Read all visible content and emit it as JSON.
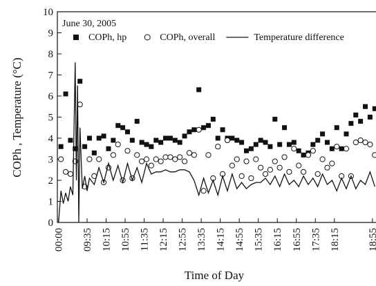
{
  "chart_data": {
    "type": "scatter",
    "annotation": "June 30, 2005",
    "xlabel": "Time of Day",
    "ylabel": "COPh , Temperature (°C)",
    "xlim": [
      -0.5,
      133.5
    ],
    "xticks": [
      {
        "value": 0,
        "label": "00:00"
      },
      {
        "value": 12,
        "label": "09:35"
      },
      {
        "value": 20,
        "label": "10:15"
      },
      {
        "value": 28,
        "label": "10:55"
      },
      {
        "value": 36,
        "label": "11:35"
      },
      {
        "value": 44,
        "label": "12:15"
      },
      {
        "value": 52,
        "label": "12:55"
      },
      {
        "value": 60,
        "label": "13:35"
      },
      {
        "value": 68,
        "label": "14:15"
      },
      {
        "value": 76,
        "label": "14:55"
      },
      {
        "value": 84,
        "label": "15:35"
      },
      {
        "value": 92,
        "label": "16:15"
      },
      {
        "value": 100,
        "label": "16:55"
      },
      {
        "value": 108,
        "label": "17:35"
      },
      {
        "value": 116,
        "label": "18:15"
      },
      {
        "value": 132,
        "label": "18:55"
      }
    ],
    "ylim": [
      0,
      10
    ],
    "yticks": [
      0,
      1,
      2,
      3,
      4,
      5,
      6,
      7,
      8,
      9,
      10
    ],
    "grid": false,
    "series": [
      {
        "name": "COPh, hp",
        "type": "scatter",
        "marker": "square",
        "color": "#111111",
        "x": [
          1,
          3,
          5,
          7,
          9,
          11,
          13,
          15,
          17,
          19,
          21,
          23,
          25,
          27,
          29,
          31,
          33,
          35,
          37,
          39,
          41,
          43,
          45,
          47,
          49,
          51,
          53,
          55,
          57,
          59,
          61,
          63,
          65,
          67,
          69,
          71,
          73,
          75,
          77,
          79,
          81,
          83,
          85,
          87,
          89,
          91,
          93,
          95,
          97,
          99,
          101,
          103,
          105,
          107,
          109,
          111,
          113,
          115,
          117,
          119,
          121,
          123,
          125,
          127,
          129,
          131,
          133
        ],
        "values": [
          3.6,
          6.1,
          3.9,
          3.5,
          6.7,
          3.6,
          4.0,
          3.3,
          4.0,
          4.1,
          3.5,
          3.9,
          4.6,
          4.5,
          4.3,
          3.9,
          4.8,
          3.8,
          3.7,
          3.6,
          3.9,
          3.8,
          4.0,
          4.0,
          3.9,
          3.8,
          4.1,
          4.3,
          4.4,
          6.3,
          4.5,
          4.6,
          4.9,
          4.0,
          4.4,
          4.0,
          4.0,
          3.9,
          3.8,
          3.4,
          3.5,
          3.7,
          3.9,
          3.8,
          3.6,
          4.9,
          3.7,
          4.5,
          3.7,
          3.8,
          3.4,
          3.2,
          3.3,
          3.7,
          3.9,
          4.2,
          3.8,
          3.5,
          4.5,
          3.5,
          4.2,
          4.7,
          5.1,
          4.8,
          5.5,
          5.0,
          5.4
        ]
      },
      {
        "name": "COPh, overall",
        "type": "scatter",
        "marker": "circle",
        "color": "#111111",
        "x": [
          1,
          3,
          5,
          7,
          9,
          11,
          13,
          15,
          17,
          19,
          21,
          23,
          25,
          27,
          29,
          31,
          33,
          35,
          37,
          39,
          41,
          43,
          45,
          47,
          49,
          51,
          53,
          55,
          57,
          59,
          61,
          63,
          65,
          67,
          69,
          71,
          73,
          75,
          77,
          79,
          81,
          83,
          85,
          87,
          89,
          91,
          93,
          95,
          97,
          99,
          101,
          103,
          105,
          107,
          109,
          111,
          113,
          115,
          117,
          119,
          121,
          123,
          125,
          127,
          129,
          131,
          133
        ],
        "values": [
          3.0,
          2.4,
          2.3,
          2.9,
          5.6,
          1.7,
          3.0,
          2.2,
          3.0,
          1.9,
          2.6,
          3.2,
          3.7,
          2.0,
          3.4,
          2.1,
          3.2,
          2.9,
          3.0,
          2.7,
          3.0,
          2.9,
          3.1,
          3.1,
          3.0,
          3.1,
          2.9,
          3.3,
          3.2,
          4.4,
          1.5,
          3.2,
          2.1,
          3.6,
          2.3,
          3.9,
          2.7,
          3.0,
          2.2,
          2.9,
          2.1,
          3.0,
          2.6,
          2.3,
          2.5,
          2.9,
          2.6,
          3.1,
          2.4,
          3.5,
          2.7,
          2.4,
          3.2,
          3.4,
          2.3,
          3.0,
          2.6,
          2.8,
          3.6,
          2.2,
          3.5,
          2.2,
          3.8,
          3.9,
          3.8,
          3.7,
          3.2
        ]
      },
      {
        "name": "Temperature difference",
        "type": "line",
        "color": "#111111",
        "x": [
          0,
          1,
          2,
          3,
          4,
          5,
          6,
          7,
          7.5,
          8,
          8.5,
          9,
          10,
          11,
          12,
          13,
          15,
          17,
          19,
          21,
          23,
          25,
          27,
          29,
          31,
          33,
          35,
          37,
          39,
          41,
          43,
          45,
          47,
          49,
          51,
          53,
          55,
          57,
          59,
          61,
          63,
          65,
          67,
          69,
          71,
          73,
          75,
          77,
          79,
          81,
          83,
          85,
          87,
          89,
          91,
          93,
          95,
          97,
          99,
          101,
          103,
          105,
          107,
          109,
          111,
          113,
          115,
          117,
          119,
          121,
          123,
          125,
          127,
          129,
          131,
          133
        ],
        "values": [
          0,
          1.5,
          0.9,
          1.4,
          1.0,
          1.7,
          1.3,
          7.6,
          2.0,
          6.5,
          0,
          4.5,
          1.6,
          2.2,
          1.5,
          2.1,
          1.8,
          2.6,
          1.9,
          2.8,
          2.0,
          2.7,
          1.9,
          2.8,
          2.0,
          2.6,
          1.9,
          2.8,
          2.3,
          2.4,
          2.4,
          2.5,
          2.4,
          2.4,
          2.5,
          2.5,
          2.4,
          2.0,
          1.3,
          2.1,
          1.4,
          2.0,
          1.3,
          2.2,
          1.5,
          2.3,
          1.6,
          1.9,
          1.6,
          1.8,
          1.9,
          1.9,
          2.1,
          1.8,
          2.2,
          1.7,
          2.3,
          1.8,
          2.0,
          1.7,
          2.2,
          1.8,
          2.1,
          1.7,
          2.3,
          1.8,
          2.0,
          1.5,
          2.1,
          1.6,
          2.2,
          1.6,
          2.0,
          1.8,
          2.4,
          1.7
        ]
      }
    ]
  }
}
